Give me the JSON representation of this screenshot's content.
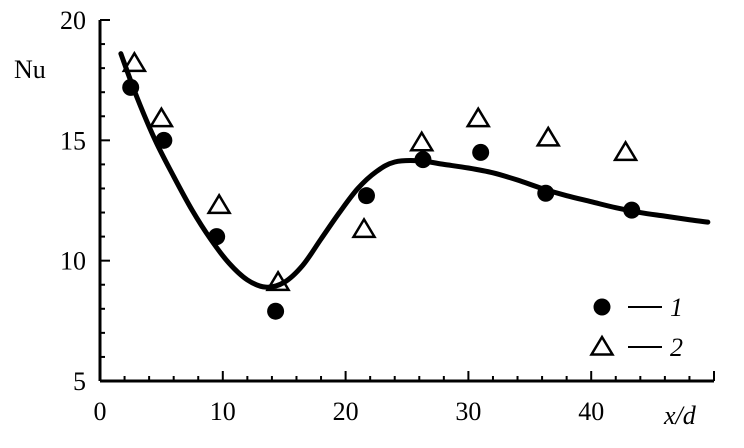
{
  "chart_data": {
    "type": "scatter",
    "xlabel": "x/d",
    "ylabel": "Nu",
    "xlim": [
      0,
      50
    ],
    "ylim": [
      5,
      20
    ],
    "x_ticks": [
      0,
      10,
      20,
      30,
      40
    ],
    "y_ticks": [
      5,
      10,
      15,
      20
    ],
    "grid": false,
    "legend_position": "bottom-right",
    "series": [
      {
        "name": "1",
        "marker": "filled-circle",
        "points": [
          {
            "x": 2.5,
            "y": 17.2
          },
          {
            "x": 5.2,
            "y": 15.0
          },
          {
            "x": 9.5,
            "y": 11.0
          },
          {
            "x": 14.3,
            "y": 7.9
          },
          {
            "x": 21.7,
            "y": 12.7
          },
          {
            "x": 26.3,
            "y": 14.2
          },
          {
            "x": 31.0,
            "y": 14.5
          },
          {
            "x": 36.3,
            "y": 12.8
          },
          {
            "x": 43.3,
            "y": 12.1
          }
        ]
      },
      {
        "name": "2",
        "marker": "open-triangle",
        "points": [
          {
            "x": 2.8,
            "y": 18.2
          },
          {
            "x": 5.0,
            "y": 15.9
          },
          {
            "x": 9.7,
            "y": 12.3
          },
          {
            "x": 14.5,
            "y": 9.1
          },
          {
            "x": 21.5,
            "y": 11.3
          },
          {
            "x": 26.2,
            "y": 14.9
          },
          {
            "x": 30.8,
            "y": 15.9
          },
          {
            "x": 36.5,
            "y": 15.1
          },
          {
            "x": 42.8,
            "y": 14.5
          }
        ]
      }
    ],
    "fit_curve": {
      "points": [
        {
          "x": 1.7,
          "y": 18.6
        },
        {
          "x": 3.0,
          "y": 16.8
        },
        {
          "x": 4.5,
          "y": 15.0
        },
        {
          "x": 6.0,
          "y": 13.5
        },
        {
          "x": 7.5,
          "y": 12.1
        },
        {
          "x": 9.0,
          "y": 10.9
        },
        {
          "x": 10.5,
          "y": 9.9
        },
        {
          "x": 12.0,
          "y": 9.2
        },
        {
          "x": 13.5,
          "y": 8.9
        },
        {
          "x": 15.0,
          "y": 9.1
        },
        {
          "x": 16.5,
          "y": 9.8
        },
        {
          "x": 18.0,
          "y": 10.9
        },
        {
          "x": 19.5,
          "y": 12.0
        },
        {
          "x": 21.0,
          "y": 13.0
        },
        {
          "x": 22.5,
          "y": 13.7
        },
        {
          "x": 24.0,
          "y": 14.1
        },
        {
          "x": 26.0,
          "y": 14.15
        },
        {
          "x": 28.0,
          "y": 14.0
        },
        {
          "x": 30.0,
          "y": 13.85
        },
        {
          "x": 32.0,
          "y": 13.65
        },
        {
          "x": 34.0,
          "y": 13.35
        },
        {
          "x": 36.0,
          "y": 13.0
        },
        {
          "x": 38.0,
          "y": 12.7
        },
        {
          "x": 40.0,
          "y": 12.45
        },
        {
          "x": 42.0,
          "y": 12.2
        },
        {
          "x": 44.0,
          "y": 12.0
        },
        {
          "x": 46.0,
          "y": 11.85
        },
        {
          "x": 48.0,
          "y": 11.7
        },
        {
          "x": 49.5,
          "y": 11.6
        }
      ]
    }
  }
}
